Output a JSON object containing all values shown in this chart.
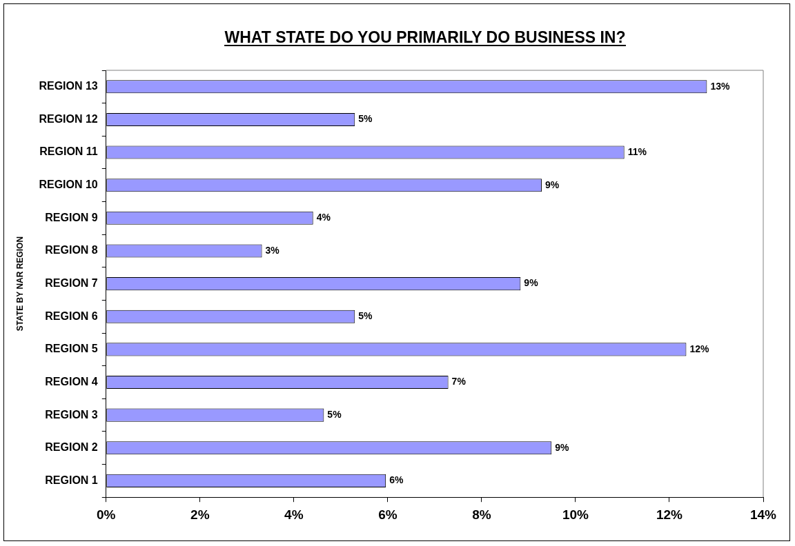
{
  "chart_data": {
    "type": "bar",
    "orientation": "horizontal",
    "title": "WHAT STATE DO YOU PRIMARILY DO BUSINESS IN?",
    "ylabel": "STATE BY NAR REGION",
    "categories": [
      "REGION 13",
      "REGION 12",
      "REGION 11",
      "REGION 10",
      "REGION 9",
      "REGION 8",
      "REGION 7",
      "REGION 6",
      "REGION 5",
      "REGION 4",
      "REGION 3",
      "REGION 2",
      "REGION 1"
    ],
    "values": [
      12.8,
      5.3,
      11.04,
      9.28,
      4.41,
      3.32,
      8.83,
      5.3,
      12.36,
      7.29,
      4.64,
      9.49,
      5.96
    ],
    "value_labels": [
      "13%",
      "5%",
      "11%",
      "9%",
      "4%",
      "3%",
      "9%",
      "5%",
      "12%",
      "7%",
      "5%",
      "9%",
      "6%"
    ],
    "color": "#9999ff",
    "xlim": [
      0,
      14
    ],
    "xticks": [
      {
        "value": 0,
        "label": "0%"
      },
      {
        "value": 2,
        "label": "2%"
      },
      {
        "value": 4,
        "label": "4%"
      },
      {
        "value": 6,
        "label": "6%"
      },
      {
        "value": 8,
        "label": "8%"
      },
      {
        "value": 10,
        "label": "10%"
      },
      {
        "value": 12,
        "label": "12%"
      },
      {
        "value": 14,
        "label": "14%"
      }
    ],
    "grid": false,
    "legend": false
  }
}
